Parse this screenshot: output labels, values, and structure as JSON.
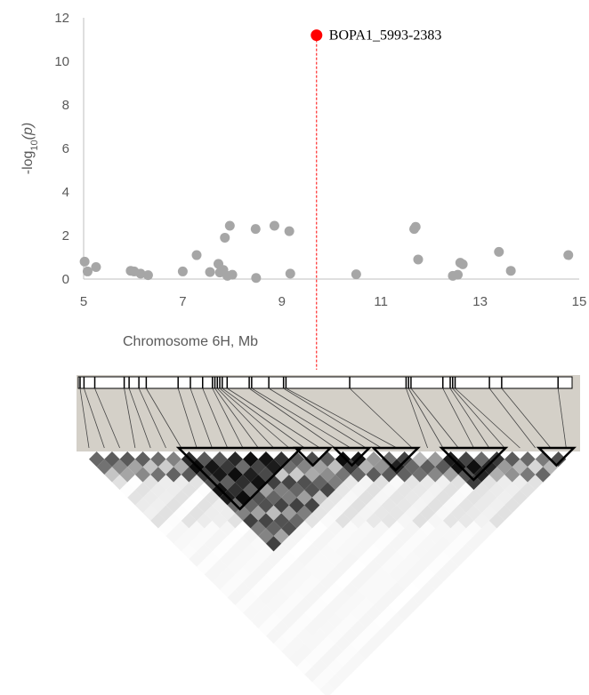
{
  "chart_data": {
    "type": "scatter",
    "title": "",
    "xlabel": "Chromosome 6H, Mb",
    "ylabel_base": "-log",
    "ylabel_sub": "10",
    "ylabel_rest": "(p)",
    "xlim": [
      5,
      15
    ],
    "ylim": [
      0,
      12
    ],
    "xticks": [
      "5",
      "7",
      "9",
      "11",
      "13",
      "15"
    ],
    "yticks": [
      "0",
      "2",
      "4",
      "6",
      "8",
      "10",
      "12"
    ],
    "grid": false,
    "series": [
      {
        "color": "#a6a6a6",
        "points": [
          [
            5.02,
            0.8
          ],
          [
            5.08,
            0.35
          ],
          [
            5.25,
            0.55
          ],
          [
            5.95,
            0.38
          ],
          [
            6.02,
            0.35
          ],
          [
            6.15,
            0.25
          ],
          [
            6.3,
            0.18
          ],
          [
            7.0,
            0.35
          ],
          [
            7.28,
            1.1
          ],
          [
            7.55,
            0.32
          ],
          [
            7.72,
            0.7
          ],
          [
            7.75,
            0.3
          ],
          [
            7.82,
            0.42
          ],
          [
            7.85,
            1.9
          ],
          [
            7.9,
            0.15
          ],
          [
            7.95,
            2.45
          ],
          [
            8.0,
            0.2
          ],
          [
            8.47,
            2.3
          ],
          [
            8.48,
            0.05
          ],
          [
            8.85,
            2.45
          ],
          [
            9.15,
            2.2
          ],
          [
            9.17,
            0.25
          ],
          [
            10.5,
            0.22
          ],
          [
            11.67,
            2.3
          ],
          [
            11.7,
            2.4
          ],
          [
            11.75,
            0.9
          ],
          [
            12.45,
            0.15
          ],
          [
            12.55,
            0.2
          ],
          [
            12.6,
            0.75
          ],
          [
            12.65,
            0.68
          ],
          [
            13.38,
            1.25
          ],
          [
            13.62,
            0.38
          ],
          [
            14.78,
            1.1
          ]
        ]
      },
      {
        "name": "BOPA1_5993-2383",
        "color": "#ff0000",
        "points": [
          [
            9.7,
            11.2
          ]
        ]
      }
    ],
    "annotations": [
      {
        "text": "BOPA1_5993-2383",
        "x": 9.7,
        "y": 11.2,
        "position": "right"
      }
    ],
    "ld_heatmap": {
      "type": "heatmap",
      "marker_positions_mb": [
        5.0,
        5.08,
        5.3,
        5.9,
        6.0,
        6.2,
        6.35,
        7.0,
        7.25,
        7.5,
        7.7,
        7.75,
        7.8,
        7.85,
        7.9,
        8.0,
        8.45,
        8.5,
        8.85,
        9.15,
        9.2,
        10.5,
        11.65,
        11.7,
        11.75,
        12.4,
        12.55,
        12.6,
        12.65,
        13.35,
        13.6,
        14.75
      ],
      "blocks_marker_index": [
        [
          10,
          21
        ],
        [
          22,
          24
        ],
        [
          26,
          28
        ],
        [
          30,
          33
        ],
        [
          37,
          42
        ],
        [
          47,
          49
        ]
      ]
    }
  }
}
